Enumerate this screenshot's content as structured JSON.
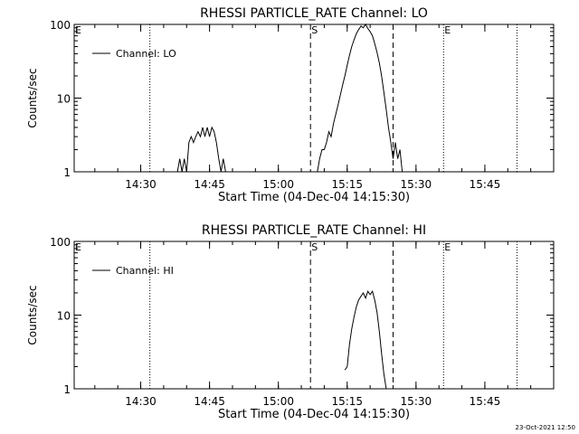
{
  "footer_timestamp": "23-Oct-2021 12:50",
  "chart_data": [
    {
      "type": "line",
      "title": "RHESSI PARTICLE_RATE Channel: LO",
      "xlabel": "Start Time (04-Dec-04 14:15:30)",
      "ylabel": "Counts/sec",
      "y_scale": "log",
      "xlim": [
        "14:15:30",
        "16:00:00"
      ],
      "ylim": [
        1,
        100
      ],
      "x_ticks": [
        "14:30",
        "14:45",
        "15:00",
        "15:15",
        "15:30",
        "15:45"
      ],
      "y_ticks": [
        "1",
        "10",
        "100"
      ],
      "legend": {
        "position": "top-left",
        "entries": [
          "Channel: LO"
        ]
      },
      "markers": [
        {
          "label": "E",
          "time": "14:15:30",
          "style": "dotted"
        },
        {
          "label": "",
          "time": "14:32:00",
          "style": "dotted"
        },
        {
          "label": "S",
          "time": "15:07:00",
          "style": "dashed"
        },
        {
          "label": "",
          "time": "15:25:00",
          "style": "dashed"
        },
        {
          "label": "E",
          "time": "15:36:00",
          "style": "dotted"
        },
        {
          "label": "",
          "time": "15:52:00",
          "style": "dotted"
        }
      ],
      "series": [
        {
          "name": "Channel: LO",
          "segments": [
            {
              "x": [
                "14:38:00",
                "14:38:30",
                "14:39:00",
                "14:39:30",
                "14:40:00",
                "14:40:30",
                "14:41:00",
                "14:41:30",
                "14:42:00",
                "14:42:30",
                "14:43:00",
                "14:43:30",
                "14:44:00",
                "14:44:30",
                "14:45:00",
                "14:45:30",
                "14:46:00",
                "14:46:30",
                "14:47:00",
                "14:47:30",
                "14:48:00",
                "14:48:30",
                "14:49:00"
              ],
              "y": [
                1.0,
                1.5,
                1.0,
                1.5,
                1.0,
                2.5,
                3.0,
                2.5,
                3.0,
                3.5,
                3.0,
                4.0,
                3.0,
                4.0,
                3.0,
                4.0,
                3.5,
                2.5,
                1.5,
                1.0,
                1.5,
                1.0,
                1.0
              ]
            },
            {
              "x": [
                "15:08:30",
                "15:09:00",
                "15:09:30",
                "15:10:00",
                "15:10:30",
                "15:11:00",
                "15:11:30",
                "15:12:00",
                "15:12:30",
                "15:13:00",
                "15:13:30",
                "15:14:00",
                "15:14:30",
                "15:15:00",
                "15:15:30",
                "15:16:00",
                "15:16:30",
                "15:17:00",
                "15:17:30",
                "15:18:00",
                "15:18:30",
                "15:19:00",
                "15:19:30",
                "15:20:00",
                "15:20:30",
                "15:21:00",
                "15:21:30",
                "15:22:00",
                "15:22:30",
                "15:23:00",
                "15:23:30",
                "15:24:00",
                "15:24:30",
                "15:25:00",
                "15:25:30",
                "15:26:00",
                "15:26:30",
                "15:27:00"
              ],
              "y": [
                1.0,
                1.5,
                2.0,
                2.0,
                2.5,
                3.5,
                3.0,
                4.5,
                6.0,
                8.0,
                11.0,
                15.0,
                20.0,
                28.0,
                38.0,
                50.0,
                62.0,
                75.0,
                85.0,
                95.0,
                90.0,
                100.0,
                88.0,
                80.0,
                70.0,
                55.0,
                42.0,
                30.0,
                20.0,
                12.0,
                7.0,
                4.0,
                2.5,
                1.5,
                2.5,
                1.5,
                2.0,
                1.0
              ]
            }
          ]
        }
      ]
    },
    {
      "type": "line",
      "title": "RHESSI PARTICLE_RATE Channel: HI",
      "xlabel": "Start Time (04-Dec-04 14:15:30)",
      "ylabel": "Counts/sec",
      "y_scale": "log",
      "xlim": [
        "14:15:30",
        "16:00:00"
      ],
      "ylim": [
        1,
        100
      ],
      "x_ticks": [
        "14:30",
        "14:45",
        "15:00",
        "15:15",
        "15:30",
        "15:45"
      ],
      "y_ticks": [
        "1",
        "10",
        "100"
      ],
      "legend": {
        "position": "top-left",
        "entries": [
          "Channel: HI"
        ]
      },
      "markers": [
        {
          "label": "E",
          "time": "14:15:30",
          "style": "dotted"
        },
        {
          "label": "",
          "time": "14:32:00",
          "style": "dotted"
        },
        {
          "label": "S",
          "time": "15:07:00",
          "style": "dashed"
        },
        {
          "label": "",
          "time": "15:25:00",
          "style": "dashed"
        },
        {
          "label": "E",
          "time": "15:36:00",
          "style": "dotted"
        },
        {
          "label": "",
          "time": "15:52:00",
          "style": "dotted"
        }
      ],
      "series": [
        {
          "name": "Channel: HI",
          "segments": [
            {
              "x": [
                "15:14:30",
                "15:15:00",
                "15:15:30",
                "15:16:00",
                "15:16:30",
                "15:17:00",
                "15:17:30",
                "15:18:00",
                "15:18:30",
                "15:19:00",
                "15:19:30",
                "15:20:00",
                "15:20:30",
                "15:21:00",
                "15:21:30",
                "15:22:00",
                "15:22:30",
                "15:23:00",
                "15:23:30"
              ],
              "y": [
                1.8,
                2.0,
                4.0,
                6.5,
                9.5,
                13.0,
                16.0,
                18.0,
                20.0,
                17.0,
                21.0,
                19.0,
                21.0,
                16.0,
                11.0,
                6.0,
                3.0,
                1.6,
                1.0
              ]
            }
          ]
        }
      ]
    }
  ]
}
